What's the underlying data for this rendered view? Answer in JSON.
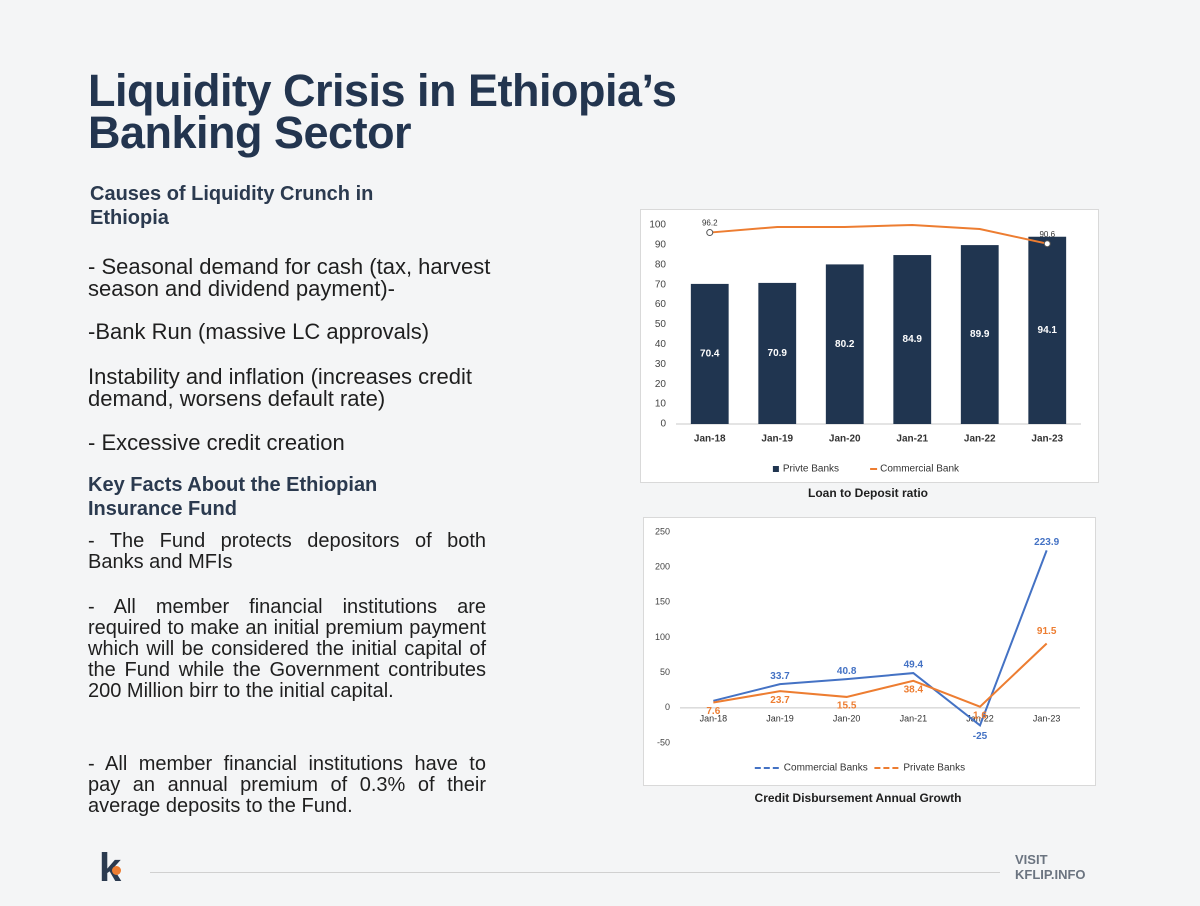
{
  "title": "Liquidity Crisis in Ethiopia’s Banking Sector",
  "causes": {
    "heading": "Causes of Liquidity Crunch in Ethiopia",
    "items": [
      "- Seasonal demand for cash (tax, harvest season and dividend payment)-",
      "-Bank Run (massive LC approvals)",
      "Instability and inflation (increases credit demand, worsens default rate)",
      "- Excessive credit creation"
    ]
  },
  "facts": {
    "heading": "Key Facts About the Ethiopian Insurance Fund",
    "items": [
      "- The Fund protects depositors of both Banks and MFIs",
      "- All member financial institutions are required to make an initial premium payment which will be considered the initial capital of the Fund while the Government contributes 200 Million birr to the initial capital.",
      "- All member financial institutions have to pay an annual premium of 0.3% of their average deposits to the Fund."
    ]
  },
  "footer": {
    "logo": "k",
    "visit": "VISIT",
    "site": "KFLIP.INFO"
  },
  "chart_data": [
    {
      "type": "bar",
      "title": "Loan to Deposit ratio",
      "categories": [
        "Jan-18",
        "Jan-19",
        "Jan-20",
        "Jan-21",
        "Jan-22",
        "Jan-23"
      ],
      "series": [
        {
          "name": "Privte Banks",
          "color": "#203550",
          "values": [
            70.4,
            70.9,
            80.2,
            84.9,
            89.9,
            94.1
          ]
        },
        {
          "name": "Commercial Bank",
          "type": "line",
          "color": "#ed7d31",
          "values": [
            96.2,
            99,
            99,
            100,
            98,
            90.6
          ],
          "value_labels": [
            "96.2",
            null,
            null,
            null,
            null,
            "90.6"
          ]
        }
      ],
      "ylim": [
        0,
        100
      ],
      "yticks": [
        0,
        10,
        20,
        30,
        40,
        50,
        60,
        70,
        80,
        90,
        100
      ],
      "grid": false,
      "legend": "bottom"
    },
    {
      "type": "line",
      "title": "Credit Disbursement Annual Growth",
      "categories": [
        "Jan-18",
        "Jan-19",
        "Jan-20",
        "Jan-21",
        "Jan-22",
        "Jan-23"
      ],
      "series": [
        {
          "name": "Commercial Banks",
          "color": "#4472c4",
          "values": [
            10,
            33.7,
            40.8,
            49.4,
            -25,
            223.9
          ],
          "value_labels": [
            null,
            "33.7",
            "40.8",
            "49.4",
            "-25",
            "223.9"
          ]
        },
        {
          "name": "Private Banks",
          "color": "#ed7d31",
          "values": [
            7.6,
            23.7,
            15.5,
            38.4,
            1.6,
            91.5
          ]
        }
      ],
      "ylim": [
        -50,
        250
      ],
      "yticks": [
        -50,
        0,
        50,
        100,
        150,
        200,
        250
      ],
      "grid": false,
      "legend": "bottom"
    }
  ]
}
